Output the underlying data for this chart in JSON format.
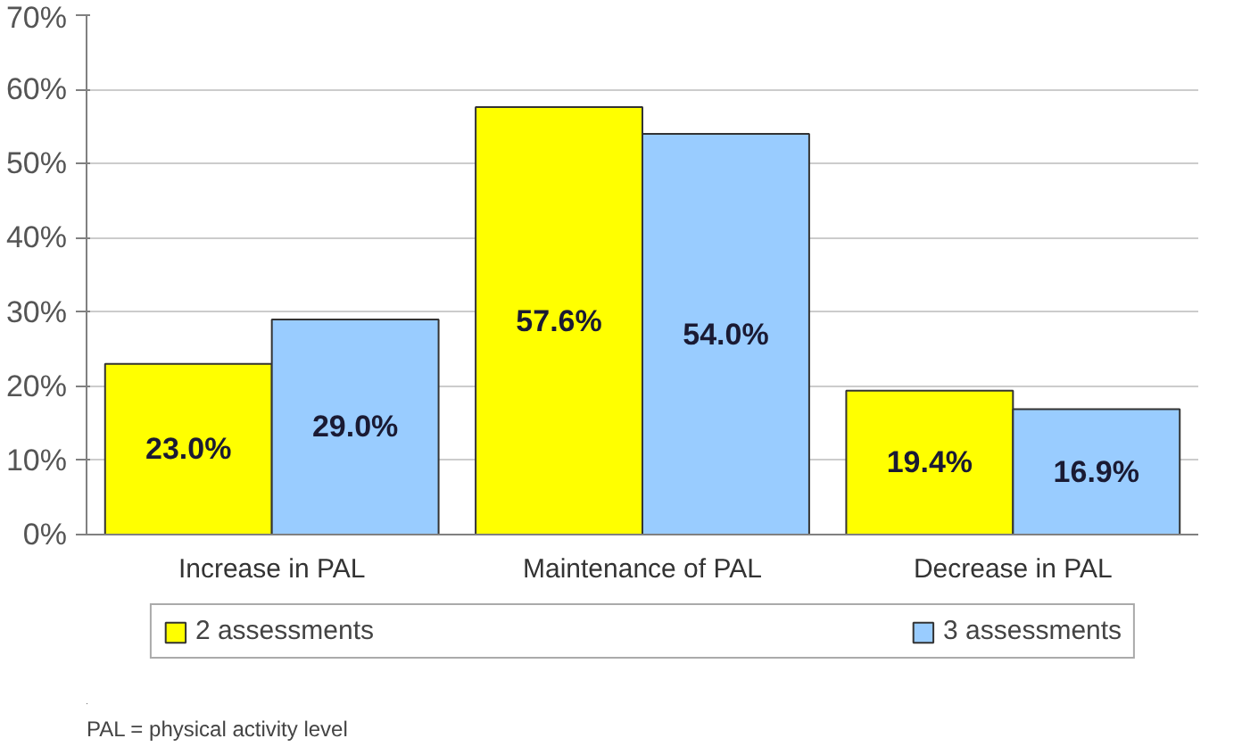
{
  "chart_data": {
    "type": "bar",
    "categories": [
      "Increase in PAL",
      "Maintenance of PAL",
      "Decrease in PAL"
    ],
    "series": [
      {
        "name": "2 assessments",
        "color": "#ffff00",
        "values": [
          23.0,
          57.6,
          19.4
        ],
        "value_labels": [
          "23.0%",
          "57.6%",
          "19.4%"
        ]
      },
      {
        "name": "3 assessments",
        "color": "#99ccff",
        "values": [
          29.0,
          54.0,
          16.9
        ],
        "value_labels": [
          "29.0%",
          "54.0%",
          "16.9%"
        ]
      }
    ],
    "ylim": [
      0,
      70
    ],
    "yticks": [
      {
        "value": 0,
        "label": "0%"
      },
      {
        "value": 10,
        "label": "10%"
      },
      {
        "value": 20,
        "label": "20%"
      },
      {
        "value": 30,
        "label": "30%"
      },
      {
        "value": 40,
        "label": "40%"
      },
      {
        "value": 50,
        "label": "50%"
      },
      {
        "value": 60,
        "label": "60%"
      },
      {
        "value": 70,
        "label": "70%"
      }
    ],
    "grid": "y",
    "legend": "bottom",
    "annotations": [
      "PAL = physical activity level"
    ]
  }
}
